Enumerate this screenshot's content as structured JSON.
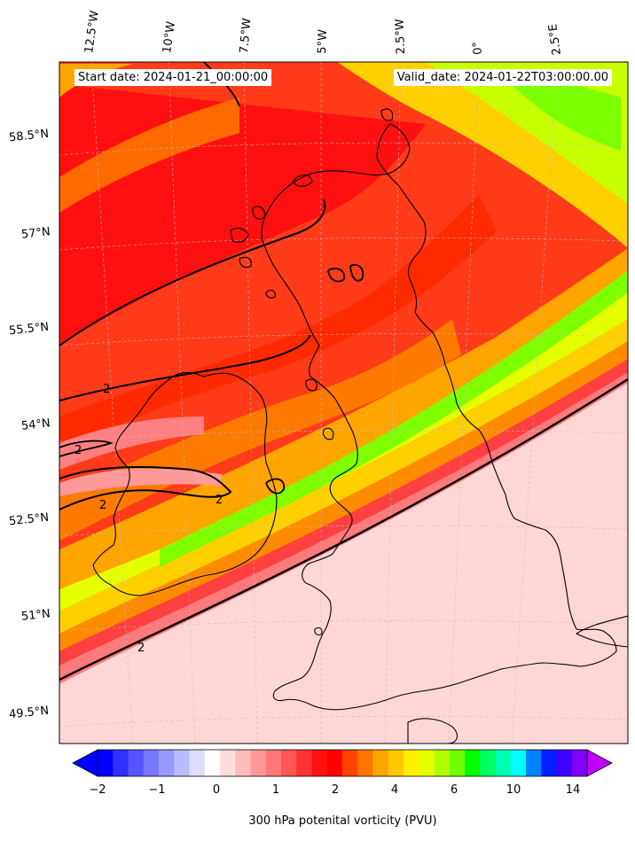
{
  "map": {
    "start_date": "Start date: 2024-01-21_00:00:00",
    "valid_date": "Valid_date: 2024-01-22T03:00:00.00",
    "longitude_labels": [
      "12.5°W",
      "10°W",
      "7.5°W",
      "5°W",
      "2.5°W",
      "0°",
      "2.5°E"
    ],
    "latitude_labels": [
      "58.5°N",
      "57°N",
      "55.5°N",
      "54°N",
      "52.5°N",
      "51°N",
      "49.5°N"
    ],
    "contour_labels": [
      "2",
      "2",
      "2",
      "2",
      "2"
    ],
    "region": "British Isles"
  },
  "colorbar": {
    "title": "300 hPa potenital vorticity (PVU)",
    "ticks": [
      "−2",
      "−1",
      "0",
      "1",
      "2",
      "4",
      "6",
      "10",
      "14"
    ],
    "colors": [
      "#0000ff",
      "#3030ff",
      "#5555ff",
      "#7777ff",
      "#9999ff",
      "#bbbbff",
      "#ddddff",
      "#ffffff",
      "#ffdddd",
      "#ffbbbb",
      "#ff9999",
      "#ff7777",
      "#ff5555",
      "#ff3333",
      "#ff1111",
      "#ff0000",
      "#ff4400",
      "#ff7700",
      "#ffa500",
      "#ffc800",
      "#ffee00",
      "#e6ff00",
      "#b0ff00",
      "#70ff00",
      "#00ff00",
      "#00ff60",
      "#00ffb0",
      "#00ffff",
      "#0080ff",
      "#0020ff",
      "#4000ff",
      "#8000ff"
    ],
    "under_color": "#0000ff",
    "over_color": "#bf00ff"
  }
}
